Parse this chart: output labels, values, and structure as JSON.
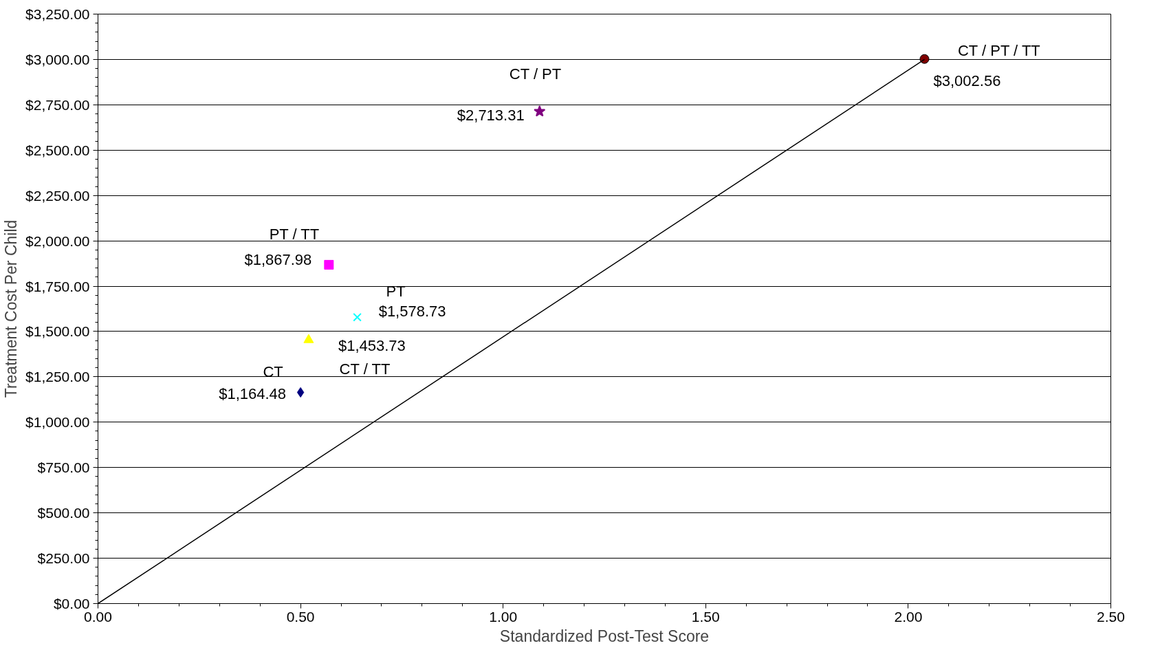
{
  "chart_data": {
    "type": "scatter",
    "xlabel": "Standardized Post-Test Score",
    "ylabel": "Treatment Cost Per Child",
    "xlim": [
      0,
      2.5
    ],
    "ylim": [
      0,
      3250
    ],
    "xticks": [
      {
        "value": 0,
        "label": "0.00"
      },
      {
        "value": 0.5,
        "label": "0.50"
      },
      {
        "value": 1,
        "label": "1.00"
      },
      {
        "value": 1.5,
        "label": "1.50"
      },
      {
        "value": 2,
        "label": "2.00"
      },
      {
        "value": 2.5,
        "label": "2.50"
      }
    ],
    "yticks": [
      {
        "value": 0,
        "label": "$0.00"
      },
      {
        "value": 250,
        "label": "$250.00"
      },
      {
        "value": 500,
        "label": "$500.00"
      },
      {
        "value": 750,
        "label": "$750.00"
      },
      {
        "value": 1000,
        "label": "$1,000.00"
      },
      {
        "value": 1250,
        "label": "$1,250.00"
      },
      {
        "value": 1500,
        "label": "$1,500.00"
      },
      {
        "value": 1750,
        "label": "$1,750.00"
      },
      {
        "value": 2000,
        "label": "$2,000.00"
      },
      {
        "value": 2250,
        "label": "$2,250.00"
      },
      {
        "value": 2500,
        "label": "$2,500.00"
      },
      {
        "value": 2750,
        "label": "$2,750.00"
      },
      {
        "value": 3000,
        "label": "$3,000.00"
      },
      {
        "value": 3250,
        "label": "$3,250.00"
      }
    ],
    "grid": "y",
    "series": [
      {
        "name": "CT",
        "color": "#000080",
        "marker": "diamond",
        "x": [
          0.5
        ],
        "values": [
          1164.48
        ],
        "value_labels": [
          "$1,164.48"
        ]
      },
      {
        "name": "CT / TT",
        "color": "#ffff00",
        "marker": "triangle",
        "x": [
          0.52
        ],
        "values": [
          1453.73
        ],
        "value_labels": [
          "$1,453.73"
        ]
      },
      {
        "name": "PT / TT",
        "color": "#ff00ff",
        "marker": "square",
        "x": [
          0.57
        ],
        "values": [
          1867.98
        ],
        "value_labels": [
          "$1,867.98"
        ]
      },
      {
        "name": "PT",
        "color": "#00ffff",
        "marker": "cross",
        "x": [
          0.64
        ],
        "values": [
          1578.73
        ],
        "value_labels": [
          "$1,578.73"
        ]
      },
      {
        "name": "CT / PT",
        "color": "#800080",
        "marker": "star",
        "x": [
          1.09
        ],
        "values": [
          2713.31
        ],
        "value_labels": [
          "$2,713.31"
        ]
      },
      {
        "name": "CT / PT / TT",
        "color": "#800000",
        "marker": "circle",
        "x": [
          2.04
        ],
        "values": [
          3002.56
        ],
        "value_labels": [
          "$3,002.56"
        ]
      },
      {
        "type": "line",
        "color": "#000000",
        "marker": "none",
        "x": [
          0,
          2.04
        ],
        "values": [
          0,
          3000
        ]
      }
    ]
  }
}
